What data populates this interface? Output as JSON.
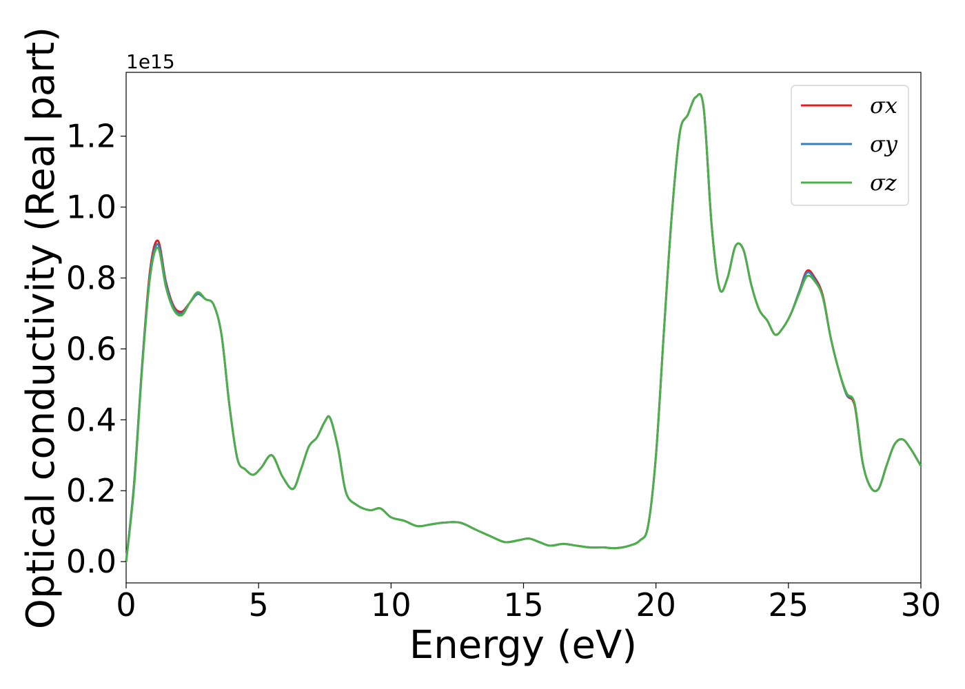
{
  "chart_data": {
    "type": "line",
    "xlabel": "Energy (eV)",
    "ylabel": "Optical conductivity (Real part)",
    "y_offset_label": "1e15",
    "xlim": [
      0,
      30
    ],
    "ylim": [
      -0.06,
      1.38
    ],
    "x_ticks": [
      0,
      5,
      10,
      15,
      20,
      25,
      30
    ],
    "x_tick_labels": [
      "0",
      "5",
      "10",
      "15",
      "20",
      "25",
      "30"
    ],
    "y_ticks": [
      0.0,
      0.2,
      0.4,
      0.6,
      0.8,
      1.0,
      1.2
    ],
    "y_tick_labels": [
      "0.0",
      "0.2",
      "0.4",
      "0.6",
      "0.8",
      "1.0",
      "1.2"
    ],
    "grid": false,
    "legend_position": "top-right",
    "x": [
      0,
      0.3,
      0.6,
      0.9,
      1.2,
      1.5,
      1.8,
      2.1,
      2.4,
      2.7,
      3.0,
      3.3,
      3.6,
      3.9,
      4.2,
      4.5,
      4.8,
      5.1,
      5.5,
      5.9,
      6.3,
      6.6,
      6.9,
      7.2,
      7.5,
      7.7,
      8.0,
      8.3,
      8.7,
      9.2,
      9.6,
      10.0,
      10.5,
      11.0,
      11.5,
      12.0,
      12.6,
      13.2,
      13.8,
      14.3,
      14.8,
      15.2,
      15.6,
      16.0,
      16.5,
      17.0,
      17.5,
      18.0,
      18.5,
      19.0,
      19.4,
      19.7,
      20.0,
      20.3,
      20.6,
      20.9,
      21.2,
      21.5,
      21.8,
      22.1,
      22.4,
      22.7,
      23.0,
      23.3,
      23.6,
      23.9,
      24.2,
      24.5,
      24.8,
      25.1,
      25.4,
      25.7,
      26.0,
      26.3,
      26.6,
      26.9,
      27.2,
      27.5,
      27.8,
      28.1,
      28.4,
      28.7,
      29.0,
      29.3,
      29.6,
      30.0
    ],
    "series": [
      {
        "name": "σx",
        "color": "#e41a1c",
        "values": [
          0.0,
          0.22,
          0.55,
          0.82,
          0.905,
          0.79,
          0.72,
          0.705,
          0.73,
          0.755,
          0.74,
          0.725,
          0.64,
          0.44,
          0.29,
          0.26,
          0.245,
          0.265,
          0.3,
          0.24,
          0.205,
          0.26,
          0.325,
          0.35,
          0.395,
          0.405,
          0.32,
          0.195,
          0.16,
          0.145,
          0.15,
          0.125,
          0.115,
          0.1,
          0.105,
          0.11,
          0.11,
          0.09,
          0.07,
          0.055,
          0.06,
          0.065,
          0.055,
          0.045,
          0.05,
          0.045,
          0.04,
          0.04,
          0.038,
          0.045,
          0.06,
          0.1,
          0.3,
          0.65,
          0.98,
          1.21,
          1.26,
          1.31,
          1.28,
          0.95,
          0.77,
          0.8,
          0.89,
          0.88,
          0.78,
          0.71,
          0.68,
          0.64,
          0.66,
          0.7,
          0.76,
          0.82,
          0.8,
          0.75,
          0.63,
          0.54,
          0.47,
          0.44,
          0.28,
          0.21,
          0.205,
          0.27,
          0.33,
          0.345,
          0.32,
          0.27
        ]
      },
      {
        "name": "σy",
        "color": "#377eb8",
        "values": [
          0.0,
          0.22,
          0.55,
          0.81,
          0.895,
          0.785,
          0.715,
          0.7,
          0.73,
          0.755,
          0.74,
          0.725,
          0.64,
          0.44,
          0.29,
          0.26,
          0.245,
          0.265,
          0.3,
          0.24,
          0.205,
          0.26,
          0.325,
          0.35,
          0.395,
          0.405,
          0.32,
          0.195,
          0.16,
          0.145,
          0.15,
          0.125,
          0.115,
          0.1,
          0.105,
          0.11,
          0.11,
          0.09,
          0.07,
          0.055,
          0.06,
          0.065,
          0.055,
          0.045,
          0.05,
          0.045,
          0.04,
          0.04,
          0.038,
          0.045,
          0.06,
          0.1,
          0.3,
          0.65,
          0.98,
          1.21,
          1.26,
          1.31,
          1.28,
          0.95,
          0.77,
          0.8,
          0.89,
          0.88,
          0.78,
          0.71,
          0.68,
          0.64,
          0.66,
          0.7,
          0.76,
          0.815,
          0.795,
          0.745,
          0.63,
          0.54,
          0.47,
          0.445,
          0.28,
          0.21,
          0.205,
          0.27,
          0.33,
          0.345,
          0.32,
          0.27
        ]
      },
      {
        "name": "σz",
        "color": "#4daf4a",
        "values": [
          0.0,
          0.21,
          0.54,
          0.8,
          0.885,
          0.775,
          0.71,
          0.695,
          0.73,
          0.76,
          0.74,
          0.725,
          0.64,
          0.44,
          0.29,
          0.26,
          0.245,
          0.265,
          0.3,
          0.24,
          0.205,
          0.26,
          0.325,
          0.35,
          0.395,
          0.405,
          0.32,
          0.195,
          0.16,
          0.145,
          0.15,
          0.125,
          0.115,
          0.1,
          0.105,
          0.11,
          0.11,
          0.09,
          0.07,
          0.055,
          0.06,
          0.065,
          0.055,
          0.045,
          0.05,
          0.045,
          0.04,
          0.04,
          0.038,
          0.045,
          0.06,
          0.1,
          0.3,
          0.65,
          0.98,
          1.21,
          1.26,
          1.31,
          1.28,
          0.95,
          0.77,
          0.8,
          0.89,
          0.88,
          0.78,
          0.71,
          0.68,
          0.64,
          0.66,
          0.7,
          0.755,
          0.805,
          0.79,
          0.745,
          0.63,
          0.54,
          0.475,
          0.445,
          0.28,
          0.21,
          0.205,
          0.27,
          0.33,
          0.345,
          0.32,
          0.27
        ]
      }
    ]
  }
}
